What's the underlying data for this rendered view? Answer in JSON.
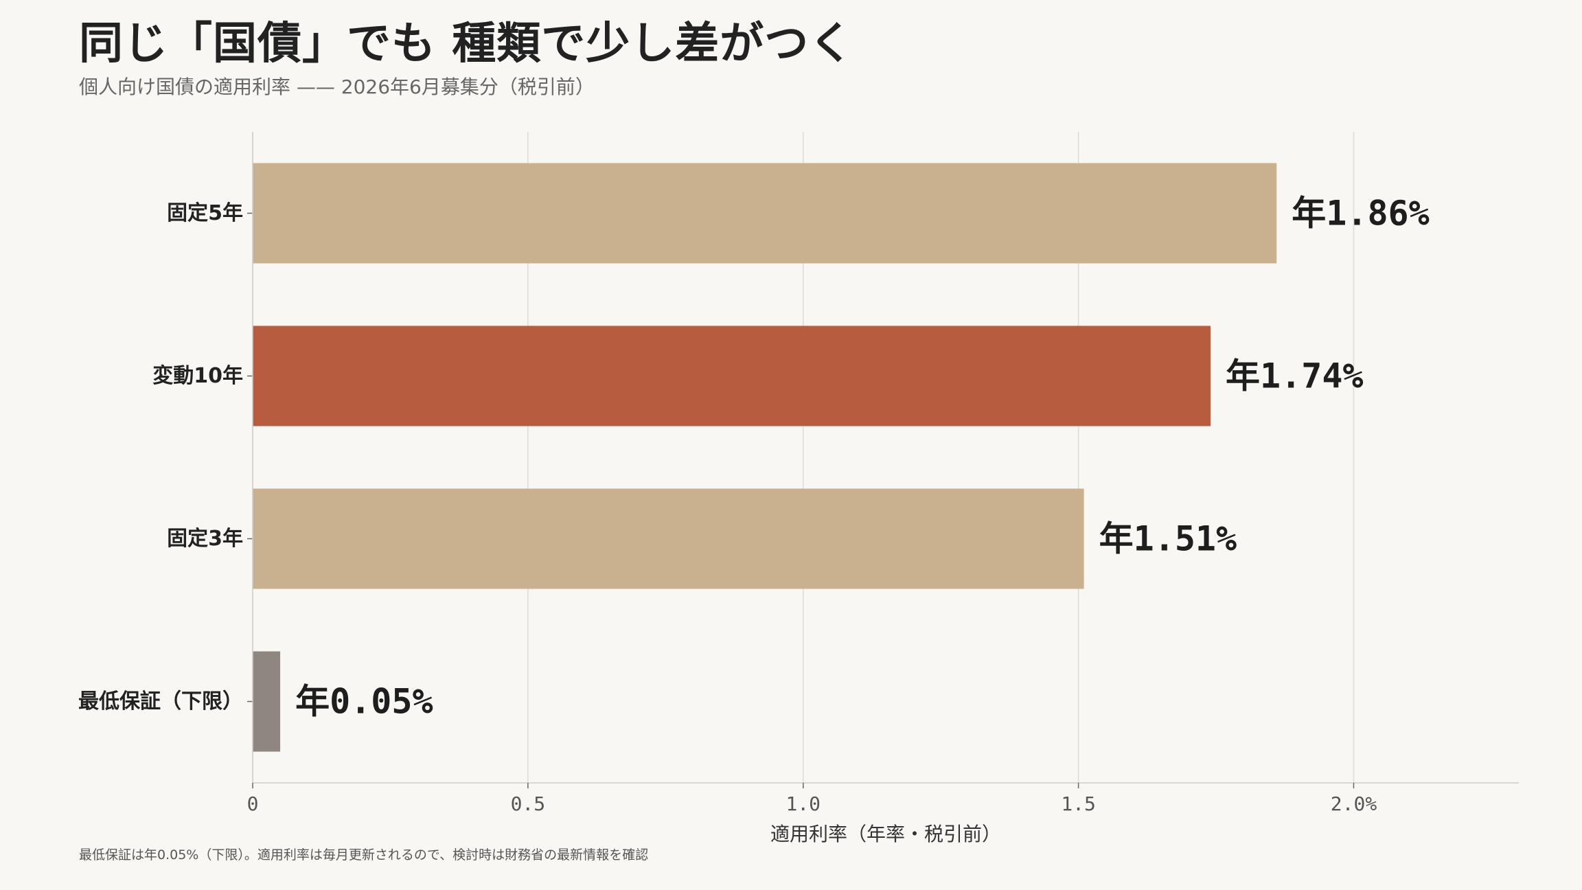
{
  "title": "同じ「国債」でも 種類で少し差がつく",
  "subtitle": "個人向け国債の適用利率 —— 2026年6月募集分（税引前）",
  "footnote": "最低保証は年0.05%（下限）。適用利率は毎月更新されるので、検討時は財務省の最新情報を確認",
  "chart_data": {
    "type": "bar",
    "orientation": "horizontal",
    "categories": [
      "固定5年",
      "変動10年",
      "固定3年",
      "最低保証（下限）"
    ],
    "values": [
      1.86,
      1.74,
      1.51,
      0.05
    ],
    "value_labels": [
      "年1.86%",
      "年1.74%",
      "年1.51%",
      "年0.05%"
    ],
    "colors": [
      "#c9b190",
      "#b85c40",
      "#c9b190",
      "#8f877f"
    ],
    "xlabel": "適用利率（年率・税引前）",
    "ylabel": "",
    "xlim": [
      0,
      2.3
    ],
    "xticks": [
      0,
      0.5,
      1.0,
      1.5,
      2.0
    ],
    "xtick_labels": [
      "0",
      "0.5",
      "1.0",
      "1.5",
      "2.0%"
    ],
    "grid": true,
    "legend": "none"
  }
}
